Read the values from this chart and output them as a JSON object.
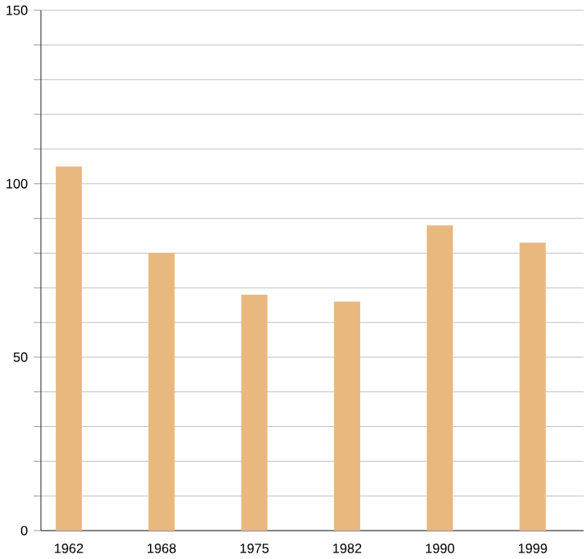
{
  "chart_data": {
    "type": "bar",
    "categories": [
      "1962",
      "1968",
      "1975",
      "1982",
      "1990",
      "1999"
    ],
    "values": [
      105,
      80,
      68,
      66,
      88,
      83
    ],
    "color": "#e8b87e",
    "ylim": [
      0,
      150
    ],
    "yticks": [
      0,
      {
        "value": 10,
        "label": null
      },
      {
        "value": 20,
        "label": null
      },
      {
        "value": 30,
        "label": null
      },
      {
        "value": 40,
        "label": null
      },
      50,
      {
        "value": 60,
        "label": null
      },
      {
        "value": 70,
        "label": null
      },
      {
        "value": 80,
        "label": null
      },
      {
        "value": 90,
        "label": null
      },
      100,
      {
        "value": 110,
        "label": null
      },
      {
        "value": 120,
        "label": null
      },
      {
        "value": 130,
        "label": null
      },
      {
        "value": 140,
        "label": null
      },
      150
    ],
    "grid": "y"
  }
}
